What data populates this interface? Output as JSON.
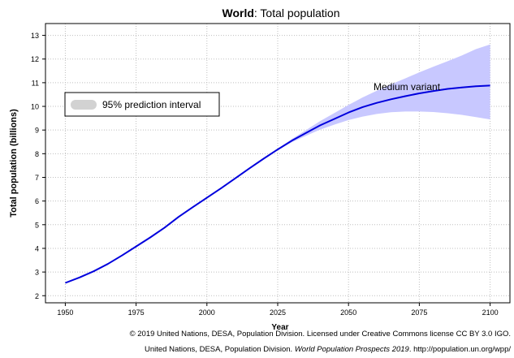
{
  "chart_data": {
    "type": "line",
    "title_bold": "World",
    "title_rest": ": Total population",
    "xlabel": "Year",
    "ylabel": "Total population (billions)",
    "xlim": [
      1943,
      2107
    ],
    "ylim": [
      1.7,
      13.5
    ],
    "xticks": [
      1950,
      1975,
      2000,
      2025,
      2050,
      2075,
      2100
    ],
    "yticks": [
      2,
      3,
      4,
      5,
      6,
      7,
      8,
      9,
      10,
      11,
      12,
      13
    ],
    "legend_position": "left",
    "legend_label": "95% prediction interval",
    "series_label": "Medium variant",
    "series": [
      {
        "name": "Medium variant",
        "color": "#0000dd",
        "x": [
          1950,
          1955,
          1960,
          1965,
          1970,
          1975,
          1980,
          1985,
          1990,
          1995,
          2000,
          2005,
          2010,
          2015,
          2020,
          2025,
          2030,
          2035,
          2040,
          2045,
          2050,
          2055,
          2060,
          2065,
          2070,
          2075,
          2080,
          2085,
          2090,
          2095,
          2100
        ],
        "y": [
          2.54,
          2.77,
          3.03,
          3.34,
          3.7,
          4.08,
          4.46,
          4.87,
          5.33,
          5.74,
          6.14,
          6.54,
          6.96,
          7.38,
          7.79,
          8.18,
          8.55,
          8.88,
          9.2,
          9.47,
          9.74,
          9.97,
          10.15,
          10.3,
          10.43,
          10.55,
          10.65,
          10.74,
          10.8,
          10.85,
          10.88
        ]
      }
    ],
    "interval": {
      "color": "#c8c8ff",
      "x": [
        2020,
        2025,
        2030,
        2035,
        2040,
        2045,
        2050,
        2055,
        2060,
        2065,
        2070,
        2075,
        2080,
        2085,
        2090,
        2095,
        2100
      ],
      "lower": [
        7.79,
        8.15,
        8.48,
        8.76,
        9.02,
        9.23,
        9.42,
        9.57,
        9.68,
        9.75,
        9.78,
        9.78,
        9.76,
        9.71,
        9.64,
        9.55,
        9.45
      ],
      "upper": [
        7.79,
        8.21,
        8.62,
        9.0,
        9.38,
        9.72,
        10.06,
        10.38,
        10.66,
        10.93,
        11.18,
        11.44,
        11.68,
        11.91,
        12.15,
        12.42,
        12.62
      ]
    }
  },
  "footer": {
    "line1": "© 2019 United Nations, DESA, Population Division. Licensed under Creative Commons license CC BY 3.0 IGO.",
    "line2_pre": "United Nations, DESA, Population Division. ",
    "line2_italic": "World Population Prospects 2019",
    "line2_post": ". http://population.un.org/wpp/"
  }
}
